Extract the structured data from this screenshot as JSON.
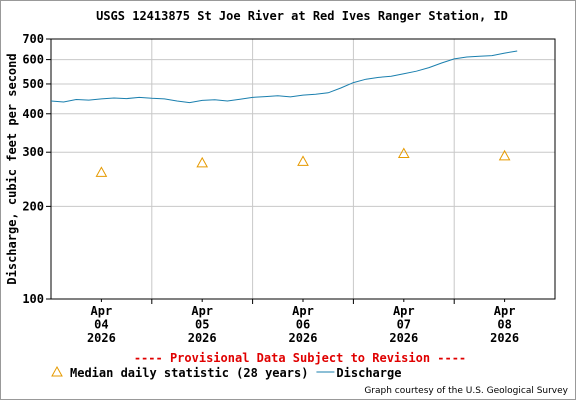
{
  "chart_data": {
    "type": "line",
    "title": "USGS 12413875 St Joe River at Red Ives Ranger Station, ID",
    "y_label": "Discharge, cubic feet per second",
    "annotation": "---- Provisional Data Subject to Revision ----",
    "credit": "Graph courtesy of the U.S. Geological Survey",
    "log_y": true,
    "grid": true,
    "ylim": [
      100,
      700
    ],
    "yticks": [
      100,
      200,
      300,
      400,
      500,
      600,
      700
    ],
    "xlim": [
      "2026-04-04T00:00",
      "2026-04-09T00:00"
    ],
    "xticks": [
      {
        "value": "2026-04-04T12:00",
        "label": [
          "Apr",
          "04",
          "2026"
        ]
      },
      {
        "value": "2026-04-05T12:00",
        "label": [
          "Apr",
          "05",
          "2026"
        ]
      },
      {
        "value": "2026-04-06T12:00",
        "label": [
          "Apr",
          "06",
          "2026"
        ]
      },
      {
        "value": "2026-04-07T12:00",
        "label": [
          "Apr",
          "07",
          "2026"
        ]
      },
      {
        "value": "2026-04-08T12:00",
        "label": [
          "Apr",
          "08",
          "2026"
        ]
      }
    ],
    "xgrid": [
      "2026-04-05T00:00",
      "2026-04-06T00:00",
      "2026-04-07T00:00",
      "2026-04-08T00:00"
    ],
    "series": [
      {
        "name": "Median daily statistic (28 years)",
        "color": "#e69a00",
        "marker": "triangle",
        "x": [
          "2026-04-04T12:00",
          "2026-04-05T12:00",
          "2026-04-06T12:00",
          "2026-04-07T12:00",
          "2026-04-08T12:00"
        ],
        "values": [
          258,
          277,
          280,
          297,
          292
        ]
      },
      {
        "name": "Discharge",
        "color": "#1a7fae",
        "marker": "line",
        "x": [
          "2026-04-04T00:00",
          "2026-04-04T03:00",
          "2026-04-04T06:00",
          "2026-04-04T09:00",
          "2026-04-04T12:00",
          "2026-04-04T15:00",
          "2026-04-04T18:00",
          "2026-04-04T21:00",
          "2026-04-05T00:00",
          "2026-04-05T03:00",
          "2026-04-05T06:00",
          "2026-04-05T09:00",
          "2026-04-05T12:00",
          "2026-04-05T15:00",
          "2026-04-05T18:00",
          "2026-04-05T21:00",
          "2026-04-06T00:00",
          "2026-04-06T03:00",
          "2026-04-06T06:00",
          "2026-04-06T09:00",
          "2026-04-06T12:00",
          "2026-04-06T15:00",
          "2026-04-06T18:00",
          "2026-04-06T21:00",
          "2026-04-07T00:00",
          "2026-04-07T03:00",
          "2026-04-07T06:00",
          "2026-04-07T09:00",
          "2026-04-07T12:00",
          "2026-04-07T15:00",
          "2026-04-07T18:00",
          "2026-04-07T21:00",
          "2026-04-08T00:00",
          "2026-04-08T03:00",
          "2026-04-08T06:00",
          "2026-04-08T09:00",
          "2026-04-08T12:00",
          "2026-04-08T15:00"
        ],
        "values": [
          440,
          437,
          445,
          443,
          447,
          450,
          448,
          452,
          449,
          447,
          440,
          435,
          442,
          444,
          440,
          446,
          452,
          455,
          458,
          454,
          460,
          463,
          468,
          485,
          505,
          518,
          525,
          530,
          540,
          550,
          565,
          585,
          603,
          612,
          615,
          618,
          630,
          640
        ]
      }
    ]
  }
}
